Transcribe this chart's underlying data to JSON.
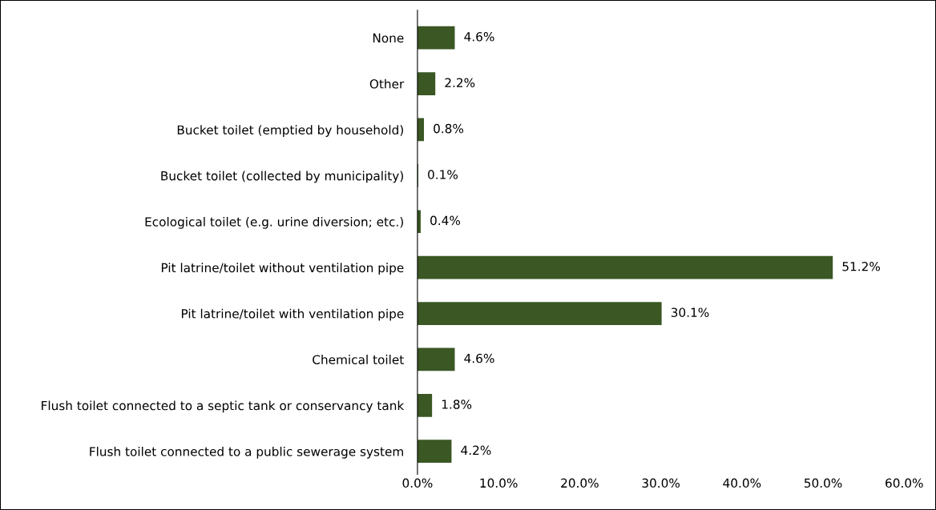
{
  "chart_data": {
    "type": "bar",
    "orientation": "horizontal",
    "categories": [
      "None",
      "Other",
      "Bucket toilet (emptied by household)",
      "Bucket toilet (collected by municipality)",
      "Ecological toilet (e.g. urine diversion; etc.)",
      "Pit latrine/toilet without ventilation pipe",
      "Pit latrine/toilet with ventilation pipe",
      "Chemical toilet",
      "Flush toilet connected to a septic tank or conservancy tank",
      "Flush toilet connected to a public sewerage system"
    ],
    "values": [
      4.6,
      2.2,
      0.8,
      0.1,
      0.4,
      51.2,
      30.1,
      4.6,
      1.8,
      4.2
    ],
    "value_labels": [
      "4.6%",
      "2.2%",
      "0.8%",
      "0.1%",
      "0.4%",
      "51.2%",
      "30.1%",
      "4.6%",
      "1.8%",
      "4.2%"
    ],
    "color": "#3a5724",
    "xlim": [
      0,
      60
    ],
    "xticks": [
      {
        "value": 0,
        "label": "0.0%"
      },
      {
        "value": 10,
        "label": "10.0%"
      },
      {
        "value": 20,
        "label": "20.0%"
      },
      {
        "value": 30,
        "label": "30.0%"
      },
      {
        "value": 40,
        "label": "40.0%"
      },
      {
        "value": 50,
        "label": "50.0%"
      },
      {
        "value": 60,
        "label": "60.0%"
      }
    ],
    "grid": false,
    "legend": false
  }
}
